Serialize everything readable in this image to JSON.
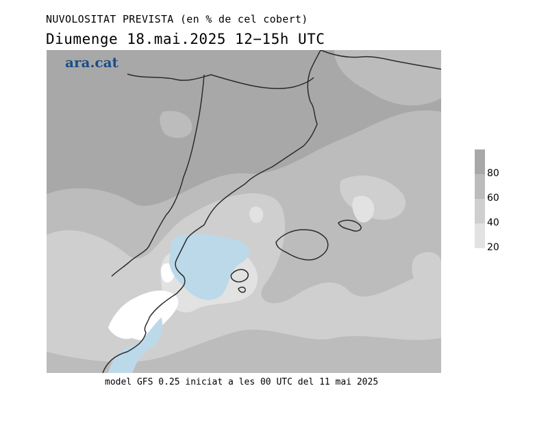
{
  "header": {
    "title": "NUVOLOSITAT PREVISTA (en % de cel cobert)",
    "subtitle": "Diumenge  18.mai.2025 12−15h UTC"
  },
  "logo": {
    "text": "ara.cat",
    "color": "#1a4e86"
  },
  "legend": {
    "labels": [
      "80",
      "60",
      "40",
      "20"
    ],
    "colors": [
      "#a8a8a8",
      "#bcbcbc",
      "#cfcfcf",
      "#e2e2e2"
    ]
  },
  "map": {
    "colors": {
      "overcast": "#a8a8a8",
      "mostly_cloudy": "#bcbcbc",
      "partly_cloudy": "#cfcfcf",
      "few_clouds": "#e2e2e2",
      "clear_land": "#ffffff",
      "sea_clear": "#bcd9ea",
      "coastline": "#2a2a2a"
    }
  },
  "footer": {
    "text": "model GFS 0.25 iniciat a les 00 UTC del 11 mai 2025"
  }
}
